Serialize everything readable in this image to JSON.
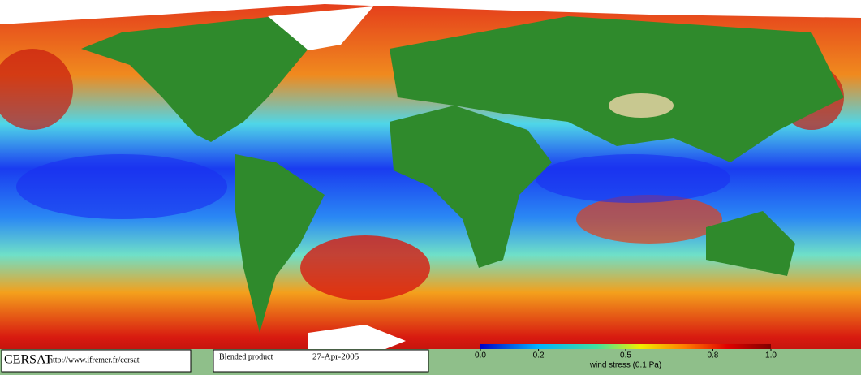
{
  "footer": {
    "logo": "CERSAT",
    "url": "http://www.ifremer.fr/cersat",
    "product": "Blended product",
    "date": "27-Apr-2005"
  },
  "colorbar": {
    "label": "wind stress (0.1 Pa)",
    "lim": [
      0,
      1
    ],
    "ticks": [
      {
        "value": 0,
        "label": "0.0"
      },
      0.2,
      0.5,
      0.8,
      {
        "value": 1,
        "label": "1.0"
      }
    ]
  }
}
